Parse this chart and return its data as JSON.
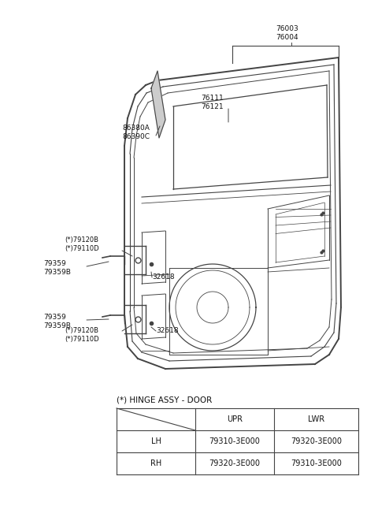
{
  "bg_color": "#ffffff",
  "title": "(*) HINGE ASSY - DOOR",
  "table_rows": [
    [
      "LH",
      "79310-3E000",
      "79320-3E000"
    ],
    [
      "RH",
      "79320-3E000",
      "79310-3E000"
    ]
  ],
  "line_color": "#444444",
  "label_color": "#111111",
  "font_size": 6.5,
  "font_size_small": 6.0
}
